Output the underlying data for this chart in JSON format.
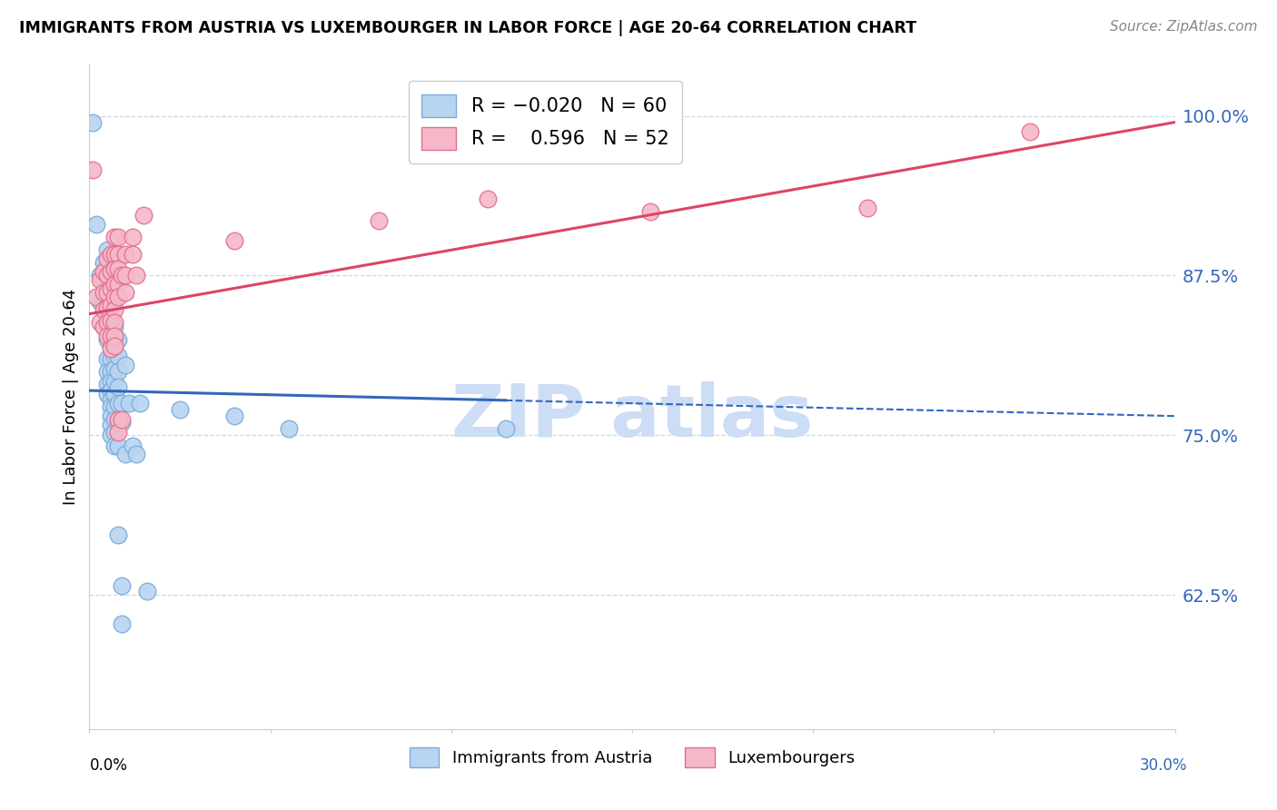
{
  "title": "IMMIGRANTS FROM AUSTRIA VS LUXEMBOURGER IN LABOR FORCE | AGE 20-64 CORRELATION CHART",
  "source": "Source: ZipAtlas.com",
  "ylabel": "In Labor Force | Age 20-64",
  "right_ytick_labels": [
    "62.5%",
    "75.0%",
    "87.5%",
    "100.0%"
  ],
  "right_ytick_values": [
    0.625,
    0.75,
    0.875,
    1.0
  ],
  "xmin": 0.0,
  "xmax": 0.3,
  "ymin": 0.52,
  "ymax": 1.04,
  "austria_color": "#b8d4f0",
  "austria_edge_color": "#7aabda",
  "luxembourger_color": "#f5b8c8",
  "luxembourger_edge_color": "#e07090",
  "austria_trend_color": "#3366bb",
  "luxembourger_trend_color": "#dd4466",
  "watermark_color": "#ccddf5",
  "grid_color": "#c8d8ee",
  "right_axis_color": "#3366bb",
  "austria_scatter": [
    [
      0.001,
      0.995
    ],
    [
      0.002,
      0.915
    ],
    [
      0.003,
      0.875
    ],
    [
      0.003,
      0.855
    ],
    [
      0.004,
      0.885
    ],
    [
      0.004,
      0.87
    ],
    [
      0.004,
      0.855
    ],
    [
      0.005,
      0.895
    ],
    [
      0.005,
      0.87
    ],
    [
      0.005,
      0.855
    ],
    [
      0.005,
      0.845
    ],
    [
      0.005,
      0.835
    ],
    [
      0.005,
      0.825
    ],
    [
      0.005,
      0.81
    ],
    [
      0.005,
      0.8
    ],
    [
      0.005,
      0.79
    ],
    [
      0.005,
      0.782
    ],
    [
      0.006,
      0.82
    ],
    [
      0.006,
      0.81
    ],
    [
      0.006,
      0.8
    ],
    [
      0.006,
      0.792
    ],
    [
      0.006,
      0.785
    ],
    [
      0.006,
      0.778
    ],
    [
      0.006,
      0.772
    ],
    [
      0.006,
      0.765
    ],
    [
      0.006,
      0.758
    ],
    [
      0.006,
      0.75
    ],
    [
      0.007,
      0.835
    ],
    [
      0.007,
      0.822
    ],
    [
      0.007,
      0.812
    ],
    [
      0.007,
      0.802
    ],
    [
      0.007,
      0.792
    ],
    [
      0.007,
      0.782
    ],
    [
      0.007,
      0.772
    ],
    [
      0.007,
      0.762
    ],
    [
      0.007,
      0.752
    ],
    [
      0.007,
      0.742
    ],
    [
      0.008,
      0.825
    ],
    [
      0.008,
      0.812
    ],
    [
      0.008,
      0.8
    ],
    [
      0.008,
      0.788
    ],
    [
      0.008,
      0.775
    ],
    [
      0.008,
      0.76
    ],
    [
      0.008,
      0.742
    ],
    [
      0.008,
      0.672
    ],
    [
      0.009,
      0.775
    ],
    [
      0.009,
      0.76
    ],
    [
      0.009,
      0.632
    ],
    [
      0.009,
      0.602
    ],
    [
      0.01,
      0.805
    ],
    [
      0.01,
      0.735
    ],
    [
      0.011,
      0.775
    ],
    [
      0.012,
      0.742
    ],
    [
      0.013,
      0.735
    ],
    [
      0.014,
      0.775
    ],
    [
      0.016,
      0.628
    ],
    [
      0.025,
      0.77
    ],
    [
      0.04,
      0.765
    ],
    [
      0.055,
      0.755
    ],
    [
      0.115,
      0.755
    ]
  ],
  "luxembourger_scatter": [
    [
      0.001,
      0.958
    ],
    [
      0.002,
      0.858
    ],
    [
      0.003,
      0.872
    ],
    [
      0.003,
      0.838
    ],
    [
      0.004,
      0.878
    ],
    [
      0.004,
      0.862
    ],
    [
      0.004,
      0.848
    ],
    [
      0.004,
      0.835
    ],
    [
      0.005,
      0.888
    ],
    [
      0.005,
      0.875
    ],
    [
      0.005,
      0.862
    ],
    [
      0.005,
      0.85
    ],
    [
      0.005,
      0.838
    ],
    [
      0.005,
      0.828
    ],
    [
      0.006,
      0.892
    ],
    [
      0.006,
      0.878
    ],
    [
      0.006,
      0.865
    ],
    [
      0.006,
      0.852
    ],
    [
      0.006,
      0.84
    ],
    [
      0.006,
      0.828
    ],
    [
      0.006,
      0.818
    ],
    [
      0.007,
      0.905
    ],
    [
      0.007,
      0.892
    ],
    [
      0.007,
      0.88
    ],
    [
      0.007,
      0.868
    ],
    [
      0.007,
      0.858
    ],
    [
      0.007,
      0.848
    ],
    [
      0.007,
      0.838
    ],
    [
      0.007,
      0.828
    ],
    [
      0.007,
      0.82
    ],
    [
      0.008,
      0.905
    ],
    [
      0.008,
      0.892
    ],
    [
      0.008,
      0.88
    ],
    [
      0.008,
      0.868
    ],
    [
      0.008,
      0.858
    ],
    [
      0.008,
      0.762
    ],
    [
      0.008,
      0.752
    ],
    [
      0.009,
      0.875
    ],
    [
      0.009,
      0.762
    ],
    [
      0.01,
      0.892
    ],
    [
      0.01,
      0.875
    ],
    [
      0.01,
      0.862
    ],
    [
      0.012,
      0.905
    ],
    [
      0.012,
      0.892
    ],
    [
      0.013,
      0.875
    ],
    [
      0.015,
      0.922
    ],
    [
      0.04,
      0.902
    ],
    [
      0.08,
      0.918
    ],
    [
      0.11,
      0.935
    ],
    [
      0.155,
      0.925
    ],
    [
      0.215,
      0.928
    ],
    [
      0.26,
      0.988
    ]
  ],
  "austria_trend_x": [
    0.0,
    0.115,
    0.3
  ],
  "austria_trend_y_solid_end": 0.115,
  "luxembourger_trend_x": [
    0.0,
    0.3
  ],
  "austria_R": -0.02,
  "austria_N": 60,
  "luxembourger_R": 0.596,
  "luxembourger_N": 52
}
